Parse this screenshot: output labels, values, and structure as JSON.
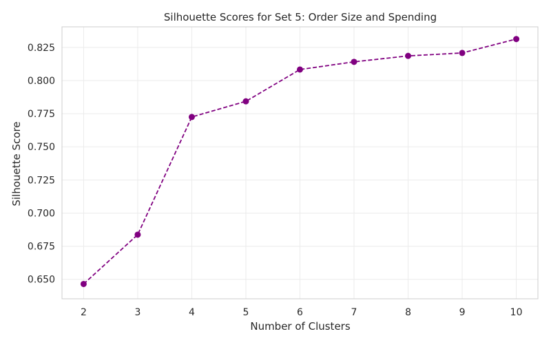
{
  "chart_data": {
    "type": "line",
    "title": "Silhouette Scores for Set 5: Order Size and Spending",
    "xlabel": "Number of Clusters",
    "ylabel": "Silhouette Score",
    "x": [
      2,
      3,
      4,
      5,
      6,
      7,
      8,
      9,
      10
    ],
    "series": [
      {
        "values": [
          0.6465,
          0.6837,
          0.7725,
          0.7843,
          0.8083,
          0.8141,
          0.8186,
          0.8208,
          0.8313
        ],
        "color": "#800080",
        "line_style": "dashed",
        "marker": "circle"
      }
    ],
    "xlim": [
      1.6,
      10.4
    ],
    "ylim": [
      0.6353,
      0.8405
    ],
    "x_ticks": [
      2,
      3,
      4,
      5,
      6,
      7,
      8,
      9,
      10
    ],
    "y_ticks": [
      0.65,
      0.675,
      0.7,
      0.725,
      0.75,
      0.775,
      0.8,
      0.825
    ],
    "y_tick_labels": [
      "0.650",
      "0.675",
      "0.700",
      "0.725",
      "0.750",
      "0.775",
      "0.800",
      "0.825"
    ],
    "grid": true,
    "legend": "none"
  }
}
